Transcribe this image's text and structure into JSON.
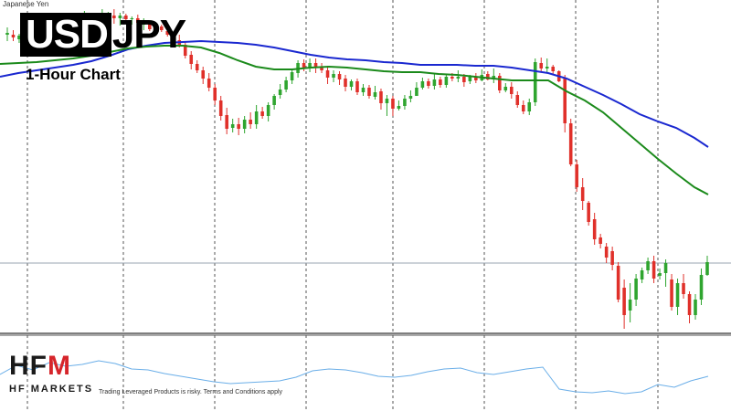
{
  "symbol_name": "Japanese Yen",
  "title": {
    "base": "USD",
    "quote": "JPY"
  },
  "subtitle": "1-Hour Chart",
  "logo": {
    "brand": "HFM",
    "sub": "HF MARKETS"
  },
  "disclaimer": "Trading Leveraged Products is risky. Terms and Conditions apply",
  "colors": {
    "up": "#2fa52f",
    "down": "#e0302a",
    "ma_fast": "#1b8a1b",
    "ma_slow": "#1a28d0",
    "indicator": "#6aaee8",
    "grid": "#555555",
    "hline": "#9aa6b2",
    "logo_accent": "#d6252b"
  },
  "chart_data": {
    "type": "candlestick",
    "title": "USDJPY",
    "subtitle": "1-Hour Chart",
    "grid": "vertical-dashed",
    "ylim": [
      30,
      375
    ],
    "horizontal_line": 288,
    "candles": [
      [
        38,
        36,
        30,
        45
      ],
      [
        38,
        41,
        33,
        45
      ],
      [
        43,
        39,
        37,
        47
      ],
      [
        40,
        44,
        36,
        50
      ],
      [
        44,
        42,
        40,
        48
      ],
      [
        38,
        41,
        32,
        47
      ],
      [
        43,
        40,
        37,
        46
      ],
      [
        40,
        37,
        35,
        42
      ],
      [
        35,
        39,
        30,
        45
      ],
      [
        38,
        35,
        33,
        40
      ],
      [
        35,
        32,
        30,
        38
      ],
      [
        32,
        24,
        20,
        34
      ],
      [
        26,
        29,
        20,
        32
      ],
      [
        28,
        18,
        12,
        30
      ],
      [
        19,
        24,
        15,
        27
      ],
      [
        24,
        22,
        17,
        29
      ],
      [
        23,
        17,
        10,
        26
      ],
      [
        21,
        17,
        13,
        23
      ],
      [
        17,
        20,
        10,
        26
      ],
      [
        20,
        17,
        14,
        28
      ],
      [
        17,
        21,
        15,
        26
      ],
      [
        21,
        20,
        18,
        27
      ],
      [
        20,
        25,
        16,
        30
      ],
      [
        27,
        24,
        20,
        33
      ],
      [
        25,
        32,
        23,
        34
      ],
      [
        31,
        29,
        25,
        36
      ],
      [
        29,
        33,
        27,
        35
      ],
      [
        34,
        38,
        31,
        40
      ],
      [
        38,
        44,
        35,
        48
      ],
      [
        44,
        49,
        38,
        52
      ],
      [
        49,
        61,
        46,
        64
      ],
      [
        60,
        70,
        56,
        76
      ],
      [
        70,
        77,
        66,
        80
      ],
      [
        77,
        86,
        73,
        92
      ],
      [
        86,
        96,
        80,
        100
      ],
      [
        96,
        110,
        92,
        115
      ],
      [
        110,
        127,
        105,
        132
      ],
      [
        126,
        141,
        118,
        147
      ],
      [
        140,
        136,
        130,
        145
      ],
      [
        136,
        141,
        129,
        148
      ],
      [
        141,
        131,
        127,
        146
      ],
      [
        131,
        136,
        123,
        141
      ],
      [
        136,
        122,
        115,
        141
      ],
      [
        122,
        127,
        117,
        130
      ],
      [
        127,
        115,
        112,
        133
      ],
      [
        115,
        105,
        103,
        120
      ],
      [
        104,
        98,
        92,
        108
      ],
      [
        98,
        88,
        84,
        101
      ],
      [
        88,
        79,
        75,
        92
      ],
      [
        80,
        69,
        66,
        85
      ],
      [
        69,
        75,
        65,
        78
      ],
      [
        75,
        69,
        64,
        79
      ],
      [
        69,
        73,
        64,
        80
      ],
      [
        74,
        77,
        69,
        80
      ],
      [
        77,
        85,
        72,
        92
      ],
      [
        85,
        81,
        77,
        90
      ],
      [
        81,
        87,
        78,
        93
      ],
      [
        86,
        95,
        82,
        100
      ],
      [
        95,
        89,
        87,
        99
      ],
      [
        89,
        101,
        86,
        104
      ],
      [
        101,
        96,
        92,
        105
      ],
      [
        96,
        105,
        93,
        108
      ],
      [
        106,
        101,
        94,
        109
      ],
      [
        100,
        113,
        97,
        120
      ],
      [
        113,
        108,
        104,
        127
      ],
      [
        108,
        119,
        105,
        127
      ],
      [
        119,
        116,
        110,
        121
      ],
      [
        116,
        108,
        104,
        120
      ],
      [
        108,
        105,
        99,
        112
      ],
      [
        105,
        96,
        90,
        103
      ],
      [
        96,
        89,
        85,
        98
      ],
      [
        89,
        94,
        86,
        97
      ],
      [
        94,
        87,
        80,
        98
      ],
      [
        87,
        93,
        84,
        96
      ],
      [
        93,
        84,
        81,
        96
      ],
      [
        84,
        86,
        80,
        89
      ],
      [
        86,
        84,
        77,
        90
      ],
      [
        84,
        90,
        81,
        95
      ],
      [
        89,
        84,
        82,
        92
      ],
      [
        84,
        88,
        80,
        91
      ],
      [
        88,
        82,
        76,
        89
      ],
      [
        81,
        87,
        78,
        88
      ],
      [
        87,
        83,
        75,
        91
      ],
      [
        83,
        99,
        80,
        102
      ],
      [
        99,
        95,
        91,
        101
      ],
      [
        95,
        103,
        90,
        108
      ],
      [
        104,
        115,
        100,
        118
      ],
      [
        115,
        122,
        110,
        125
      ],
      [
        122,
        112,
        108,
        126
      ],
      [
        112,
        68,
        64,
        116
      ],
      [
        69,
        75,
        63,
        78
      ],
      [
        75,
        73,
        64,
        80
      ],
      [
        73,
        78,
        71,
        82
      ],
      [
        78,
        89,
        77,
        90
      ],
      [
        85,
        135,
        82,
        145
      ],
      [
        135,
        180,
        130,
        182
      ],
      [
        180,
        205,
        175,
        210
      ],
      [
        205,
        220,
        195,
        230
      ],
      [
        222,
        243,
        220,
        247
      ],
      [
        240,
        262,
        233,
        268
      ],
      [
        260,
        267,
        256,
        272
      ],
      [
        270,
        282,
        266,
        288
      ],
      [
        275,
        290,
        270,
        296
      ],
      [
        291,
        328,
        287,
        331
      ],
      [
        315,
        345,
        306,
        360
      ],
      [
        340,
        328,
        310,
        353
      ],
      [
        328,
        305,
        300,
        335
      ],
      [
        306,
        296,
        293,
        310
      ],
      [
        296,
        286,
        282,
        300
      ],
      [
        286,
        305,
        280,
        310
      ],
      [
        302,
        299,
        294,
        306
      ],
      [
        299,
        288,
        284,
        314
      ],
      [
        306,
        336,
        300,
        340
      ],
      [
        336,
        310,
        305,
        345
      ],
      [
        310,
        322,
        300,
        327
      ],
      [
        322,
        345,
        319,
        354
      ],
      [
        345,
        328,
        322,
        350
      ],
      [
        328,
        301,
        294,
        334
      ],
      [
        301,
        287,
        280,
        302
      ]
    ],
    "series": [
      {
        "name": "",
        "values": [
          [
            0,
            84
          ],
          [
            20,
            80
          ],
          [
            40,
            77
          ],
          [
            60,
            74
          ],
          [
            80,
            71
          ],
          [
            100,
            67
          ],
          [
            120,
            61
          ],
          [
            140,
            54
          ],
          [
            160,
            50
          ],
          [
            180,
            47
          ],
          [
            200,
            46
          ],
          [
            220,
            45
          ],
          [
            240,
            46
          ],
          [
            260,
            47
          ],
          [
            280,
            49
          ],
          [
            300,
            52
          ],
          [
            320,
            56
          ],
          [
            340,
            60
          ],
          [
            360,
            63
          ],
          [
            380,
            65
          ],
          [
            400,
            66
          ],
          [
            420,
            68
          ],
          [
            440,
            69
          ],
          [
            460,
            71
          ],
          [
            480,
            71
          ],
          [
            500,
            71
          ],
          [
            520,
            72
          ],
          [
            540,
            72
          ],
          [
            560,
            74
          ],
          [
            580,
            77
          ],
          [
            600,
            80
          ],
          [
            620,
            86
          ],
          [
            640,
            95
          ],
          [
            660,
            104
          ],
          [
            680,
            114
          ],
          [
            700,
            125
          ],
          [
            720,
            133
          ],
          [
            740,
            140
          ],
          [
            760,
            151
          ],
          [
            775,
            161
          ]
        ]
      },
      {
        "name": "",
        "values": [
          [
            0,
            70
          ],
          [
            20,
            69
          ],
          [
            40,
            68
          ],
          [
            60,
            66
          ],
          [
            80,
            64
          ],
          [
            100,
            61
          ],
          [
            120,
            57
          ],
          [
            140,
            53
          ],
          [
            160,
            51
          ],
          [
            180,
            50
          ],
          [
            200,
            50
          ],
          [
            220,
            52
          ],
          [
            240,
            58
          ],
          [
            260,
            66
          ],
          [
            280,
            73
          ],
          [
            300,
            76
          ],
          [
            320,
            76
          ],
          [
            340,
            74
          ],
          [
            360,
            73
          ],
          [
            380,
            74
          ],
          [
            400,
            76
          ],
          [
            420,
            78
          ],
          [
            440,
            79
          ],
          [
            460,
            79
          ],
          [
            480,
            81
          ],
          [
            500,
            82
          ],
          [
            520,
            84
          ],
          [
            540,
            86
          ],
          [
            560,
            88
          ],
          [
            580,
            88
          ],
          [
            600,
            88
          ],
          [
            620,
            100
          ],
          [
            640,
            110
          ],
          [
            660,
            123
          ],
          [
            680,
            140
          ],
          [
            700,
            157
          ],
          [
            720,
            174
          ],
          [
            740,
            190
          ],
          [
            760,
            205
          ],
          [
            775,
            213
          ]
        ]
      },
      {
        "name": "",
        "values": [
          [
            0,
            410
          ],
          [
            18,
            400
          ],
          [
            36,
            405
          ],
          [
            54,
            397
          ],
          [
            72,
            401
          ],
          [
            90,
            399
          ],
          [
            108,
            395
          ],
          [
            126,
            398
          ],
          [
            144,
            404
          ],
          [
            162,
            405
          ],
          [
            180,
            409
          ],
          [
            198,
            412
          ],
          [
            216,
            415
          ],
          [
            234,
            418
          ],
          [
            252,
            420
          ],
          [
            270,
            419
          ],
          [
            288,
            418
          ],
          [
            306,
            417
          ],
          [
            324,
            413
          ],
          [
            342,
            406
          ],
          [
            360,
            404
          ],
          [
            378,
            405
          ],
          [
            396,
            408
          ],
          [
            414,
            412
          ],
          [
            432,
            413
          ],
          [
            450,
            411
          ],
          [
            468,
            407
          ],
          [
            486,
            404
          ],
          [
            504,
            403
          ],
          [
            522,
            408
          ],
          [
            540,
            410
          ],
          [
            558,
            407
          ],
          [
            576,
            404
          ],
          [
            594,
            402
          ],
          [
            612,
            426
          ],
          [
            630,
            429
          ],
          [
            648,
            430
          ],
          [
            666,
            428
          ],
          [
            684,
            431
          ],
          [
            702,
            429
          ],
          [
            720,
            421
          ],
          [
            738,
            424
          ],
          [
            756,
            417
          ],
          [
            775,
            412
          ]
        ]
      }
    ]
  }
}
